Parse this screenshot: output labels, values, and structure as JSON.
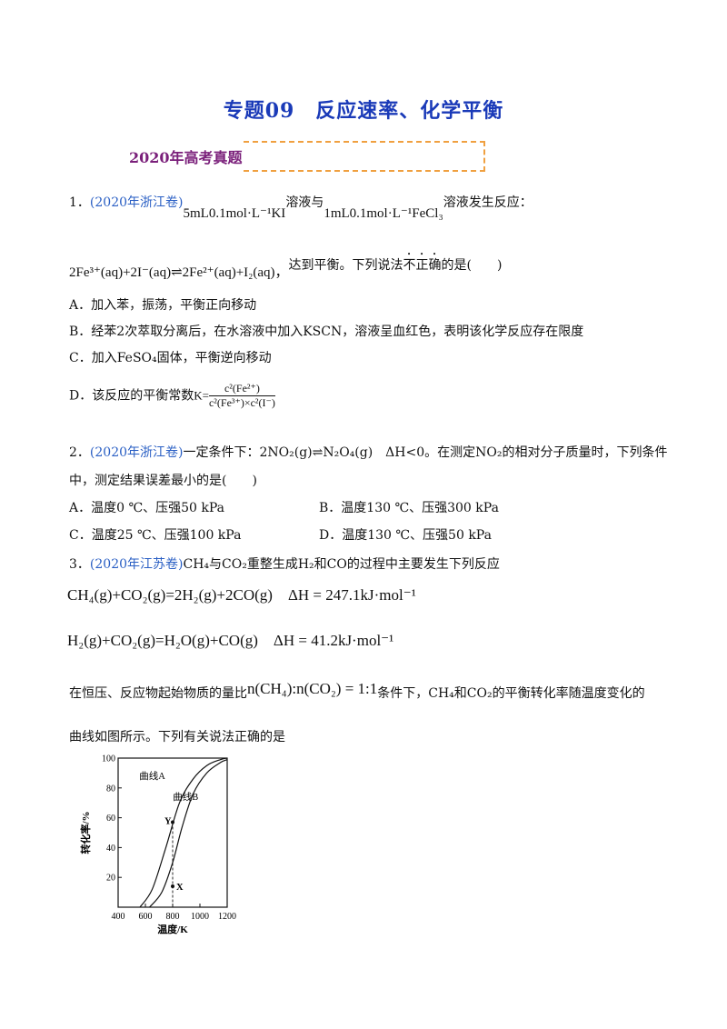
{
  "title": "专题09　反应速率、化学平衡",
  "section": "2020年高考真题",
  "q1": {
    "num": "1．",
    "source": "(2020年浙江卷)",
    "expr1": "5mL0.1mol·L⁻¹KI",
    "mid": "溶液与",
    "expr2": "1mL0.1mol·L⁻¹FeCl₃",
    "end": "溶液发生反应：",
    "equation": "2Fe³⁺(aq)+2I⁻(aq)⇌2Fe²⁺(aq)+I₂(aq)，",
    "stem_a": "达到平衡。下列说法",
    "stem_emph": "不正确",
    "stem_b": "的是(　　)",
    "opt_a": "A．加入苯，振荡，平衡正向移动",
    "opt_b": "B．经苯2次萃取分离后，在水溶液中加入KSCN，溶液呈血红色，表明该化学反应存在限度",
    "opt_c": "C．加入FeSO₄固体，平衡逆向移动",
    "opt_d_pre": "D．该反应的平衡常数",
    "opt_d_k": "K=",
    "opt_d_num": "c²(Fe²⁺)",
    "opt_d_den": "c²(Fe³⁺)×c²(I⁻)"
  },
  "q2": {
    "num": "2．",
    "source": "(2020年浙江卷)",
    "stem1": "一定条件下：2NO₂(g)⇌N₂O₄(g)　ΔH<0。在测定NO₂的相对分子质量时，下列条件",
    "stem2": "中，测定结果误差最小的是(　　)",
    "opt_a": "A．温度0 ℃、压强50 kPa",
    "opt_b": "B．温度130 ℃、压强300 kPa",
    "opt_c": "C．温度25 ℃、压强100 kPa",
    "opt_d": "D．温度130 ℃、压强50 kPa"
  },
  "q3": {
    "num": "3．",
    "source": "(2020年江苏卷)",
    "stem": "CH₄与CO₂重整生成H₂和CO的过程中主要发生下列反应",
    "eq1": "CH₄(g)+CO₂(g)=2H₂(g)+2CO(g)　ΔH = 247.1kJ·mol⁻¹",
    "eq2": "H₂(g)+CO₂(g)=H₂O(g)+CO(g)　ΔH = 41.2kJ·mol⁻¹",
    "cond_a": "在恒压、反应物起始物质的量比",
    "cond_ratio": "n(CH₄):n(CO₂) = 1:1",
    "cond_b": "条件下，CH₄和CO₂的平衡转化率随温度变化的",
    "cond_c": "曲线如图所示。下列有关说法正确的是"
  },
  "chart_data": {
    "type": "line",
    "xlabel": "温度/K",
    "ylabel": "转化率/%",
    "xlim": [
      400,
      1200
    ],
    "ylim": [
      0,
      100
    ],
    "x_ticks": [
      "400",
      "600",
      "800",
      "1000",
      "1200"
    ],
    "y_ticks": [
      "20",
      "40",
      "60",
      "80",
      "100"
    ],
    "series": [
      {
        "name": "曲线A",
        "x": [
          560,
          650,
          750,
          850,
          950,
          1050,
          1150,
          1200
        ],
        "y": [
          0,
          12,
          40,
          70,
          86,
          95,
          99,
          100
        ]
      },
      {
        "name": "曲线B",
        "x": [
          630,
          720,
          800,
          870,
          950,
          1050,
          1150,
          1200
        ],
        "y": [
          0,
          10,
          30,
          54,
          76,
          90,
          97,
          99
        ]
      }
    ],
    "points": [
      {
        "label": "Y",
        "x": 800,
        "y": 57
      },
      {
        "label": "X",
        "x": 800,
        "y": 14
      }
    ],
    "grid": false
  }
}
